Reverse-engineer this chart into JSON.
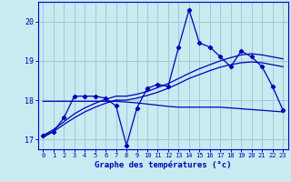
{
  "title": "Graphe des températures (°c)",
  "bg_color": "#c8eaf0",
  "grid_color": "#a0c8d8",
  "line_color": "#0000bb",
  "xlim": [
    -0.5,
    23.5
  ],
  "ylim": [
    16.75,
    20.5
  ],
  "yticks": [
    17,
    18,
    19,
    20
  ],
  "xticks": [
    0,
    1,
    2,
    3,
    4,
    5,
    6,
    7,
    8,
    9,
    10,
    11,
    12,
    13,
    14,
    15,
    16,
    17,
    18,
    19,
    20,
    21,
    22,
    23
  ],
  "temp_data": [
    17.1,
    17.2,
    17.55,
    18.1,
    18.1,
    18.1,
    18.05,
    17.85,
    16.85,
    17.8,
    18.3,
    18.4,
    18.35,
    19.35,
    20.3,
    19.45,
    19.35,
    19.1,
    18.85,
    19.25,
    19.1,
    18.85,
    18.35,
    17.75
  ],
  "trend1_data": [
    17.1,
    17.25,
    17.45,
    17.65,
    17.8,
    17.92,
    18.02,
    18.1,
    18.1,
    18.15,
    18.22,
    18.32,
    18.42,
    18.55,
    18.68,
    18.8,
    18.9,
    19.0,
    19.08,
    19.15,
    19.18,
    19.15,
    19.1,
    19.05
  ],
  "trend2_data": [
    17.05,
    17.2,
    17.38,
    17.55,
    17.7,
    17.82,
    17.92,
    18.0,
    18.0,
    18.05,
    18.12,
    18.2,
    18.3,
    18.42,
    18.55,
    18.65,
    18.75,
    18.84,
    18.9,
    18.95,
    18.97,
    18.95,
    18.9,
    18.85
  ],
  "trend3_data": [
    17.97,
    17.97,
    17.97,
    17.97,
    17.97,
    17.97,
    17.97,
    17.97,
    17.95,
    17.93,
    17.9,
    17.87,
    17.84,
    17.82,
    17.82,
    17.82,
    17.82,
    17.82,
    17.8,
    17.78,
    17.76,
    17.74,
    17.72,
    17.7
  ]
}
